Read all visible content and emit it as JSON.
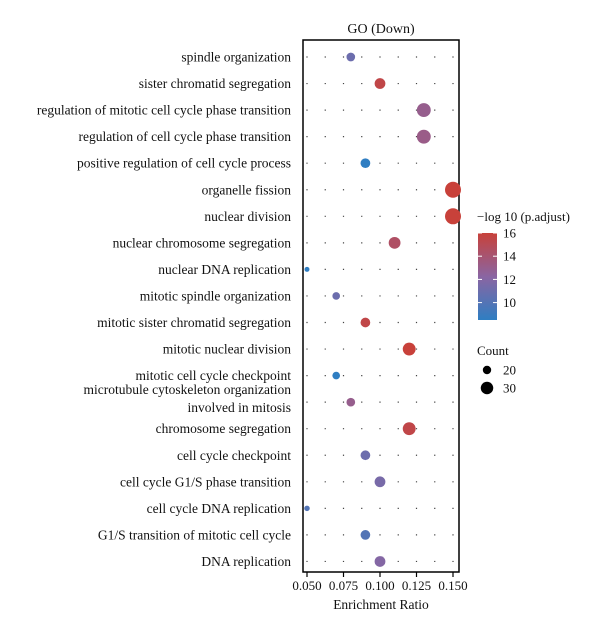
{
  "chart_data": {
    "type": "scatter",
    "title": "GO (Down)",
    "xlabel": "Enrichment Ratio",
    "ylabel": "",
    "xlim": [
      0.05,
      0.15
    ],
    "xticks": [
      "0.050",
      "0.075",
      "0.100",
      "0.125",
      "0.150"
    ],
    "grid": "dotted",
    "color_legend": {
      "title": "−log 10 (p.adjust)",
      "ticks": [
        "16",
        "14",
        "12",
        "10"
      ],
      "range": [
        8.5,
        16
      ],
      "low_color": "#2f7ec2",
      "high_color": "#c8413a"
    },
    "size_legend": {
      "title": "Count",
      "entries": [
        {
          "label": "20",
          "value": 20
        },
        {
          "label": "30",
          "value": 30
        }
      ]
    },
    "points": [
      {
        "term": "spindle organization",
        "x": 0.08,
        "color_value": 11.0,
        "count": 16
      },
      {
        "term": "sister chromatid segregation",
        "x": 0.1,
        "color_value": 15.5,
        "count": 20
      },
      {
        "term": "regulation of mitotic cell cycle phase transition",
        "x": 0.13,
        "color_value": 13.0,
        "count": 26
      },
      {
        "term": "regulation of cell cycle phase transition",
        "x": 0.13,
        "color_value": 13.2,
        "count": 26
      },
      {
        "term": "positive regulation of cell cycle process",
        "x": 0.09,
        "color_value": 8.5,
        "count": 18
      },
      {
        "term": "organelle fission",
        "x": 0.15,
        "color_value": 16.0,
        "count": 30
      },
      {
        "term": "nuclear division",
        "x": 0.15,
        "color_value": 16.0,
        "count": 30
      },
      {
        "term": "nuclear chromosome segregation",
        "x": 0.11,
        "color_value": 14.5,
        "count": 22
      },
      {
        "term": "nuclear DNA replication",
        "x": 0.05,
        "color_value": 8.5,
        "count": 9
      },
      {
        "term": "mitotic spindle organization",
        "x": 0.07,
        "color_value": 11.0,
        "count": 14
      },
      {
        "term": "mitotic sister chromatid segregation",
        "x": 0.09,
        "color_value": 15.5,
        "count": 18
      },
      {
        "term": "mitotic nuclear division",
        "x": 0.12,
        "color_value": 16.0,
        "count": 24
      },
      {
        "term": "mitotic cell cycle checkpoint",
        "x": 0.07,
        "color_value": 8.5,
        "count": 14
      },
      {
        "term": "microtubule cytoskeleton organization involved in mitosis",
        "x": 0.08,
        "color_value": 13.0,
        "count": 16
      },
      {
        "term": "chromosome segregation",
        "x": 0.12,
        "color_value": 15.5,
        "count": 24
      },
      {
        "term": "cell cycle checkpoint",
        "x": 0.09,
        "color_value": 11.0,
        "count": 18
      },
      {
        "term": "cell cycle G1/S phase transition",
        "x": 0.1,
        "color_value": 11.5,
        "count": 20
      },
      {
        "term": "cell cycle DNA replication",
        "x": 0.05,
        "color_value": 10.0,
        "count": 10
      },
      {
        "term": "G1/S transition of mitotic cell cycle",
        "x": 0.09,
        "color_value": 10.0,
        "count": 18
      },
      {
        "term": "DNA replication",
        "x": 0.1,
        "color_value": 12.0,
        "count": 20
      }
    ]
  }
}
